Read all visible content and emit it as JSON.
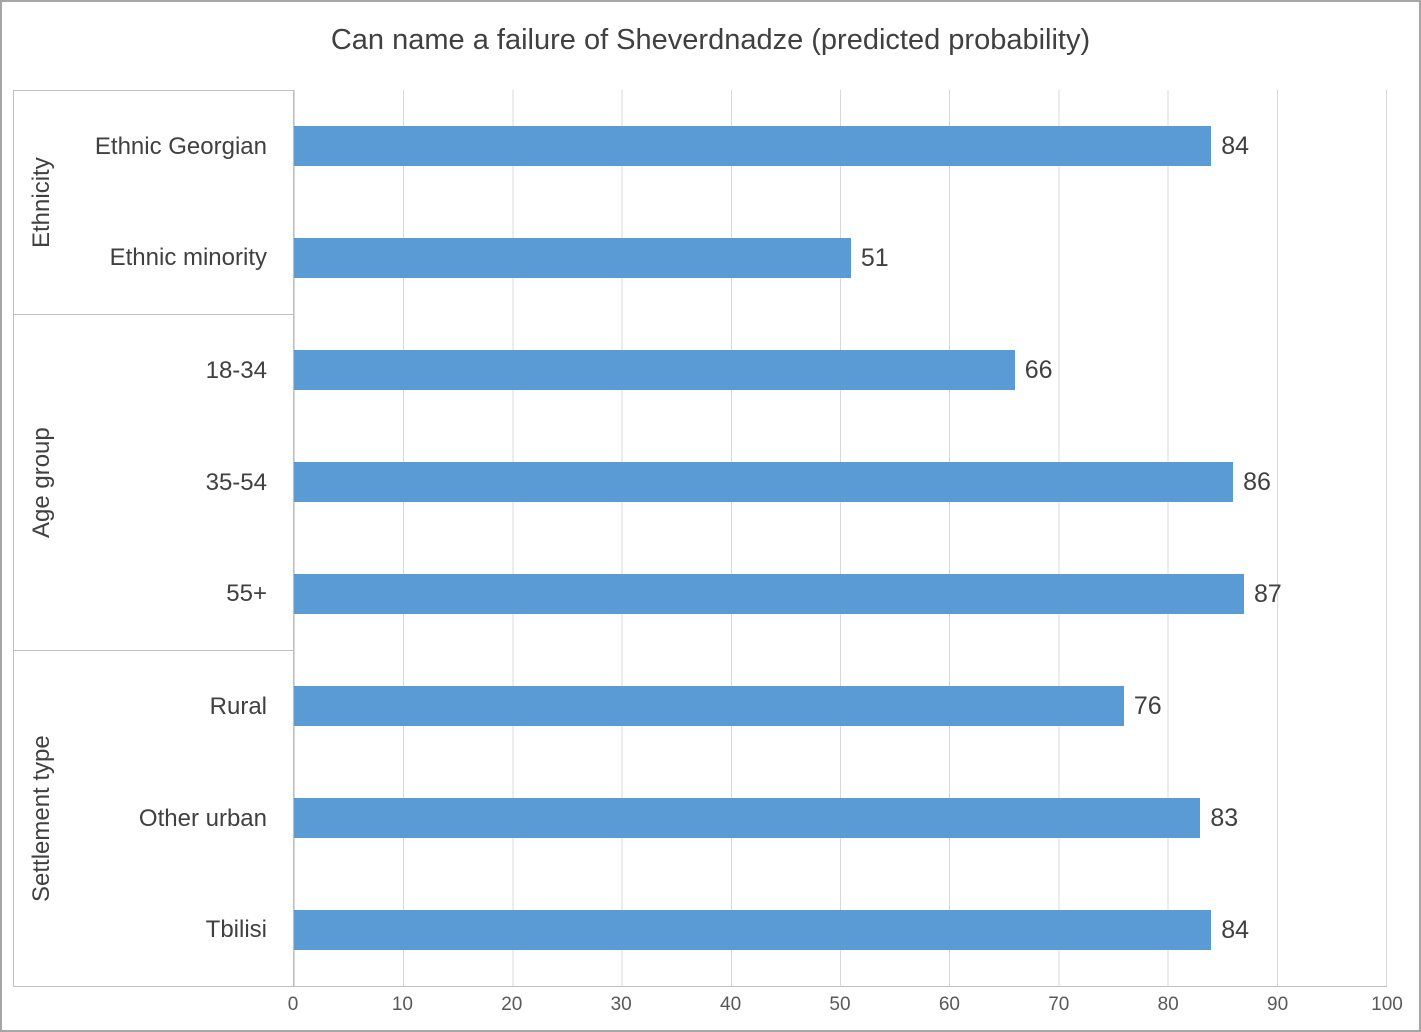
{
  "chart_data": {
    "type": "bar",
    "orientation": "horizontal",
    "title": "Can name a failure of Sheverdnadze (predicted probability)",
    "xlabel": "",
    "ylabel": "",
    "xlim": [
      0,
      100
    ],
    "x_ticks": [
      0,
      10,
      20,
      30,
      40,
      50,
      60,
      70,
      80,
      90,
      100
    ],
    "grid": "vertical",
    "legend": "none",
    "bar_color": "#5b9bd5",
    "groups": [
      {
        "label": "Ethnicity",
        "items": [
          {
            "label": "Ethnic Georgian",
            "value": 84
          },
          {
            "label": "Ethnic minority",
            "value": 51
          }
        ]
      },
      {
        "label": "Age group",
        "items": [
          {
            "label": "18-34",
            "value": 66
          },
          {
            "label": "35-54",
            "value": 86
          },
          {
            "label": "55+",
            "value": 87
          }
        ]
      },
      {
        "label": "Settlement type",
        "items": [
          {
            "label": "Rural",
            "value": 76
          },
          {
            "label": "Other urban",
            "value": 83
          },
          {
            "label": "Tbilisi",
            "value": 84
          }
        ]
      }
    ]
  }
}
